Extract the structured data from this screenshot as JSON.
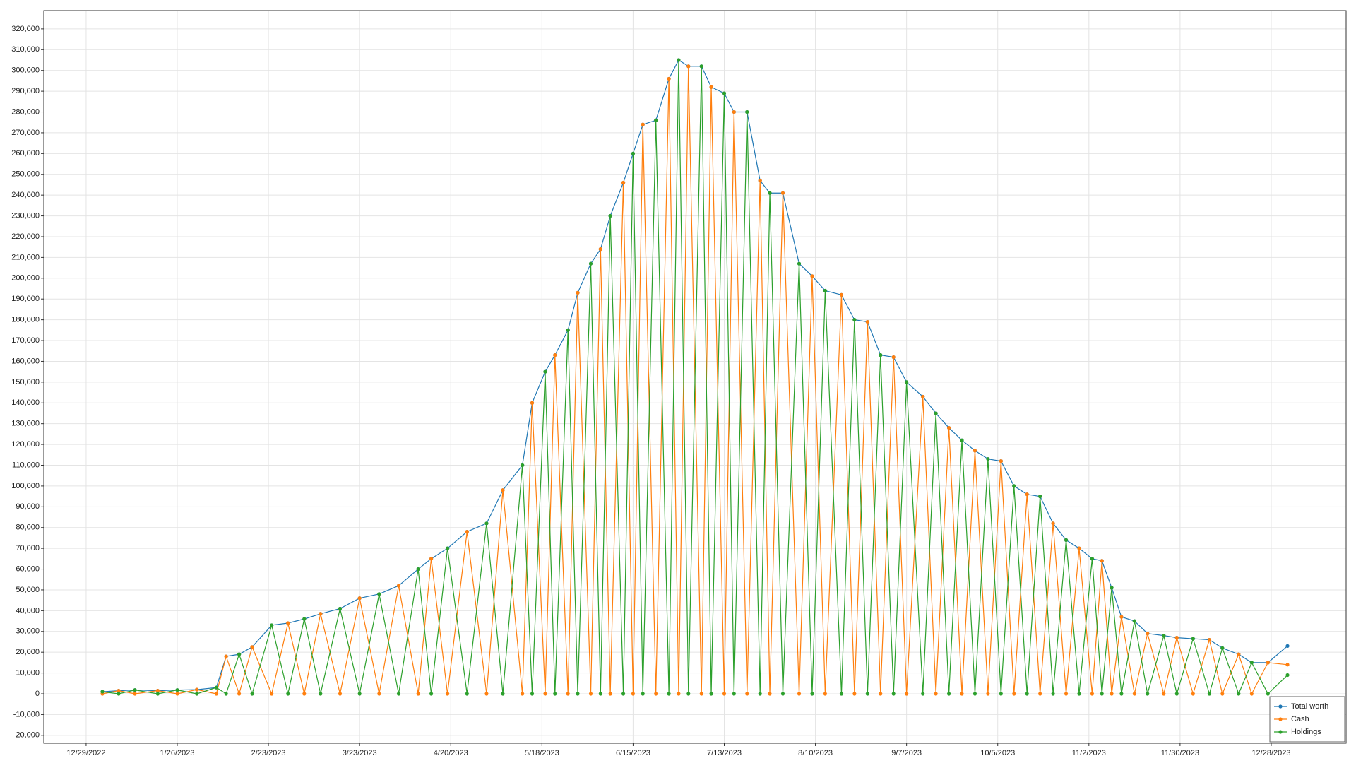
{
  "chart_data": {
    "type": "line",
    "x": [
      "2023-01-03",
      "2023-01-08",
      "2023-01-13",
      "2023-01-20",
      "2023-01-26",
      "2023-02-01",
      "2023-02-07",
      "2023-02-10",
      "2023-02-14",
      "2023-02-18",
      "2023-02-24",
      "2023-03-01",
      "2023-03-06",
      "2023-03-11",
      "2023-03-17",
      "2023-03-23",
      "2023-03-29",
      "2023-04-04",
      "2023-04-10",
      "2023-04-14",
      "2023-04-19",
      "2023-04-25",
      "2023-05-01",
      "2023-05-06",
      "2023-05-12",
      "2023-05-15",
      "2023-05-19",
      "2023-05-22",
      "2023-05-26",
      "2023-05-29",
      "2023-06-02",
      "2023-06-05",
      "2023-06-08",
      "2023-06-12",
      "2023-06-15",
      "2023-06-18",
      "2023-06-22",
      "2023-06-26",
      "2023-06-29",
      "2023-07-02",
      "2023-07-06",
      "2023-07-09",
      "2023-07-13",
      "2023-07-16",
      "2023-07-20",
      "2023-07-24",
      "2023-07-27",
      "2023-07-31",
      "2023-08-05",
      "2023-08-09",
      "2023-08-13",
      "2023-08-18",
      "2023-08-22",
      "2023-08-26",
      "2023-08-30",
      "2023-09-03",
      "2023-09-07",
      "2023-09-12",
      "2023-09-16",
      "2023-09-20",
      "2023-09-24",
      "2023-09-28",
      "2023-10-02",
      "2023-10-06",
      "2023-10-10",
      "2023-10-14",
      "2023-10-18",
      "2023-10-22",
      "2023-10-26",
      "2023-10-30",
      "2023-11-03",
      "2023-11-06",
      "2023-11-09",
      "2023-11-12",
      "2023-11-16",
      "2023-11-20",
      "2023-11-25",
      "2023-11-29",
      "2023-12-04",
      "2023-12-09",
      "2023-12-13",
      "2023-12-18",
      "2023-12-22",
      "2023-12-27",
      "2024-01-02"
    ],
    "series": [
      {
        "name": "Total worth",
        "color": "#1f77b4",
        "values": [
          1000,
          1500,
          1800,
          1500,
          1800,
          2000,
          3000,
          18000,
          19000,
          22500,
          33000,
          34000,
          36000,
          38500,
          41000,
          46000,
          48000,
          52000,
          60000,
          65000,
          70000,
          78000,
          82000,
          98000,
          110000,
          140000,
          155000,
          163000,
          175000,
          193000,
          207000,
          214000,
          230000,
          246000,
          260000,
          274000,
          276000,
          296000,
          305000,
          302000,
          302000,
          292000,
          289000,
          280000,
          280000,
          247000,
          241000,
          241000,
          207000,
          201000,
          194000,
          192000,
          180000,
          179000,
          163000,
          162000,
          150000,
          143000,
          135000,
          128000,
          122000,
          117000,
          113000,
          112000,
          100000,
          96000,
          95000,
          82000,
          74000,
          70000,
          65000,
          64000,
          51000,
          37000,
          35000,
          29000,
          28000,
          27000,
          26500,
          26000,
          22000,
          19000,
          15000,
          15000,
          23000
        ]
      },
      {
        "name": "Cash",
        "color": "#ff7f0e",
        "values": [
          0,
          1500,
          0,
          1500,
          0,
          2000,
          0,
          18000,
          0,
          22500,
          0,
          34000,
          0,
          38500,
          0,
          46000,
          0,
          52000,
          0,
          65000,
          0,
          78000,
          0,
          98000,
          0,
          140000,
          0,
          163000,
          0,
          193000,
          0,
          214000,
          0,
          246000,
          0,
          274000,
          0,
          296000,
          0,
          302000,
          0,
          292000,
          0,
          280000,
          0,
          247000,
          0,
          241000,
          0,
          201000,
          0,
          192000,
          0,
          179000,
          0,
          162000,
          0,
          143000,
          0,
          128000,
          0,
          117000,
          0,
          112000,
          0,
          96000,
          0,
          82000,
          0,
          70000,
          0,
          64000,
          0,
          37000,
          0,
          29000,
          0,
          27000,
          0,
          26000,
          0,
          19000,
          0,
          15000,
          14000
        ]
      },
      {
        "name": "Holdings",
        "color": "#2ca02c",
        "values": [
          1000,
          0,
          1800,
          0,
          1800,
          0,
          3000,
          0,
          19000,
          0,
          33000,
          0,
          36000,
          0,
          41000,
          0,
          48000,
          0,
          60000,
          0,
          70000,
          0,
          82000,
          0,
          110000,
          0,
          155000,
          0,
          175000,
          0,
          207000,
          0,
          230000,
          0,
          260000,
          0,
          276000,
          0,
          305000,
          0,
          302000,
          0,
          289000,
          0,
          280000,
          0,
          241000,
          0,
          207000,
          0,
          194000,
          0,
          180000,
          0,
          163000,
          0,
          150000,
          0,
          135000,
          0,
          122000,
          0,
          113000,
          0,
          100000,
          0,
          95000,
          0,
          74000,
          0,
          65000,
          0,
          51000,
          0,
          35000,
          0,
          28000,
          0,
          26500,
          0,
          22000,
          0,
          15000,
          0,
          9000
        ]
      }
    ],
    "xlim": [
      "2022-12-16",
      "2024-01-20"
    ],
    "xticks": [
      {
        "value": "2022-12-29",
        "label": "12/29/2022"
      },
      {
        "value": "2023-01-26",
        "label": "1/26/2023"
      },
      {
        "value": "2023-02-23",
        "label": "2/23/2023"
      },
      {
        "value": "2023-03-23",
        "label": "3/23/2023"
      },
      {
        "value": "2023-04-20",
        "label": "4/20/2023"
      },
      {
        "value": "2023-05-18",
        "label": "5/18/2023"
      },
      {
        "value": "2023-06-15",
        "label": "6/15/2023"
      },
      {
        "value": "2023-07-13",
        "label": "7/13/2023"
      },
      {
        "value": "2023-08-10",
        "label": "8/10/2023"
      },
      {
        "value": "2023-09-07",
        "label": "9/7/2023"
      },
      {
        "value": "2023-10-05",
        "label": "10/5/2023"
      },
      {
        "value": "2023-11-02",
        "label": "11/2/2023"
      },
      {
        "value": "2023-11-30",
        "label": "11/30/2023"
      },
      {
        "value": "2023-12-28",
        "label": "12/28/2023"
      }
    ],
    "ylim": [
      -23800,
      328800
    ],
    "yticks": [
      {
        "value": -20000,
        "label": "-20,000"
      },
      {
        "value": -10000,
        "label": "-10,000"
      },
      0,
      {
        "value": 10000,
        "label": "10,000"
      },
      {
        "value": 20000,
        "label": "20,000"
      },
      {
        "value": 30000,
        "label": "30,000"
      },
      {
        "value": 40000,
        "label": "40,000"
      },
      {
        "value": 50000,
        "label": "50,000"
      },
      {
        "value": 60000,
        "label": "60,000"
      },
      {
        "value": 70000,
        "label": "70,000"
      },
      {
        "value": 80000,
        "label": "80,000"
      },
      {
        "value": 90000,
        "label": "90,000"
      },
      {
        "value": 100000,
        "label": "100,000"
      },
      {
        "value": 110000,
        "label": "110,000"
      },
      {
        "value": 120000,
        "label": "120,000"
      },
      {
        "value": 130000,
        "label": "130,000"
      },
      {
        "value": 140000,
        "label": "140,000"
      },
      {
        "value": 150000,
        "label": "150,000"
      },
      {
        "value": 160000,
        "label": "160,000"
      },
      {
        "value": 170000,
        "label": "170,000"
      },
      {
        "value": 180000,
        "label": "180,000"
      },
      {
        "value": 190000,
        "label": "190,000"
      },
      {
        "value": 200000,
        "label": "200,000"
      },
      {
        "value": 210000,
        "label": "210,000"
      },
      {
        "value": 220000,
        "label": "220,000"
      },
      {
        "value": 230000,
        "label": "230,000"
      },
      {
        "value": 240000,
        "label": "240,000"
      },
      {
        "value": 250000,
        "label": "250,000"
      },
      {
        "value": 260000,
        "label": "260,000"
      },
      {
        "value": 270000,
        "label": "270,000"
      },
      {
        "value": 280000,
        "label": "280,000"
      },
      {
        "value": 290000,
        "label": "290,000"
      },
      {
        "value": 300000,
        "label": "300,000"
      },
      {
        "value": 310000,
        "label": "310,000"
      },
      {
        "value": 320000,
        "label": "320,000"
      }
    ],
    "grid": true,
    "legend_position": "lower right"
  }
}
